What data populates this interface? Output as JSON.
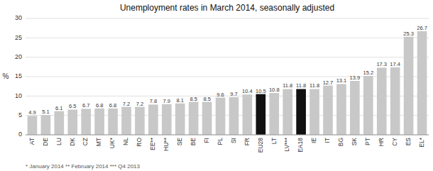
{
  "chart_data": {
    "type": "bar",
    "title": "Unemployment rates in March 2014, seasonally adjusted",
    "ylabel": "%",
    "categories": [
      "AT",
      "DE",
      "LU",
      "DK",
      "CZ",
      "MT",
      "UK*",
      "NL",
      "RO",
      "EE**",
      "HU**",
      "SE",
      "BE",
      "FI",
      "PL",
      "SI",
      "FR",
      "EU28",
      "LT",
      "LV***",
      "EA18",
      "IE",
      "IT",
      "BG",
      "SK",
      "PT",
      "HR",
      "CY",
      "ES",
      "EL*"
    ],
    "values": [
      4.9,
      5.1,
      6.1,
      6.5,
      6.7,
      6.8,
      6.8,
      7.2,
      7.2,
      7.8,
      7.9,
      8.1,
      8.5,
      8.5,
      9.6,
      9.7,
      10.4,
      10.5,
      10.8,
      11.8,
      11.8,
      11.8,
      12.7,
      13.1,
      13.9,
      15.2,
      17.3,
      17.4,
      25.3,
      26.7
    ],
    "colors": [
      "#c8c8c8",
      "#c8c8c8",
      "#c8c8c8",
      "#c8c8c8",
      "#c8c8c8",
      "#c8c8c8",
      "#c8c8c8",
      "#c8c8c8",
      "#c8c8c8",
      "#c8c8c8",
      "#c8c8c8",
      "#c8c8c8",
      "#c8c8c8",
      "#c8c8c8",
      "#c8c8c8",
      "#c8c8c8",
      "#c8c8c8",
      "#111111",
      "#c8c8c8",
      "#c8c8c8",
      "#111111",
      "#c8c8c8",
      "#c8c8c8",
      "#c8c8c8",
      "#c8c8c8",
      "#c8c8c8",
      "#c8c8c8",
      "#c8c8c8",
      "#c8c8c8",
      "#c8c8c8"
    ],
    "ylim": [
      0,
      30
    ],
    "yticks": [
      0,
      5,
      10,
      15,
      20,
      25,
      30
    ],
    "grid": true,
    "data_labels": true,
    "annotations": [
      "* January 2014    ** February 2014    *** Q4 2013"
    ]
  }
}
